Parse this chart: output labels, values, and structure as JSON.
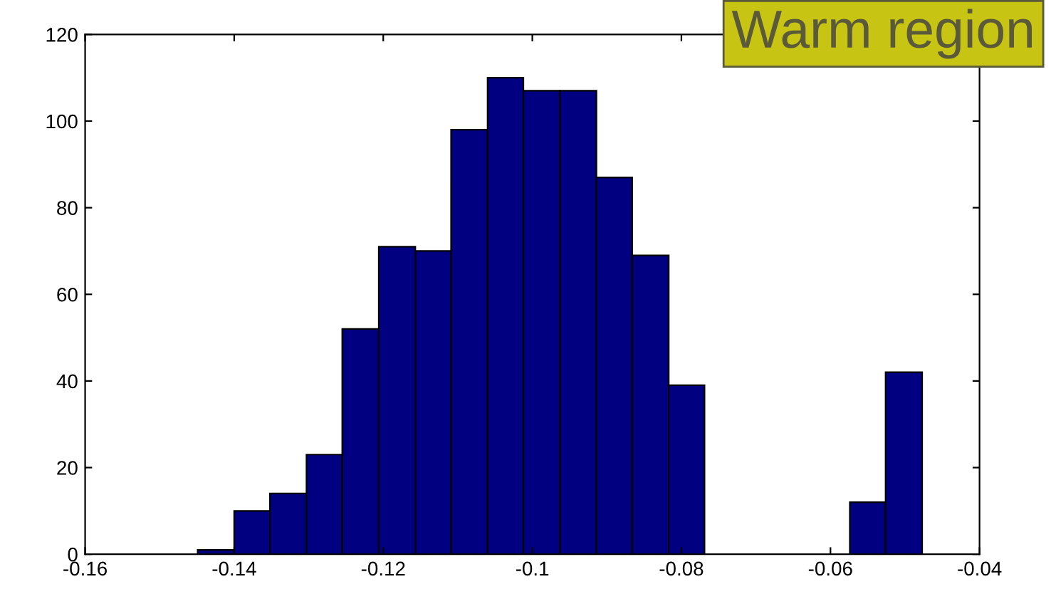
{
  "chart_data": {
    "type": "histogram",
    "bins": [
      -0.1449,
      -0.14,
      -0.1352,
      -0.1303,
      -0.1255,
      -0.1206,
      -0.1157,
      -0.1109,
      -0.106,
      -0.1012,
      -0.0963,
      -0.0914,
      -0.0866,
      -0.0817,
      -0.0769,
      -0.0574,
      -0.0526,
      -0.0477
    ],
    "values": [
      1,
      10,
      14,
      23,
      52,
      71,
      70,
      98,
      110,
      107,
      107,
      87,
      69,
      39,
      0,
      12,
      42
    ],
    "color": "#000080",
    "xlim": [
      -0.16,
      -0.04
    ],
    "xticks": [
      -0.16,
      -0.14,
      -0.12,
      -0.1,
      -0.08,
      -0.06,
      -0.04
    ],
    "ylim": [
      0,
      120
    ],
    "yticks": [
      0,
      20,
      40,
      60,
      80,
      100,
      120
    ],
    "grid": false,
    "annotations": [
      "Warm region"
    ]
  }
}
